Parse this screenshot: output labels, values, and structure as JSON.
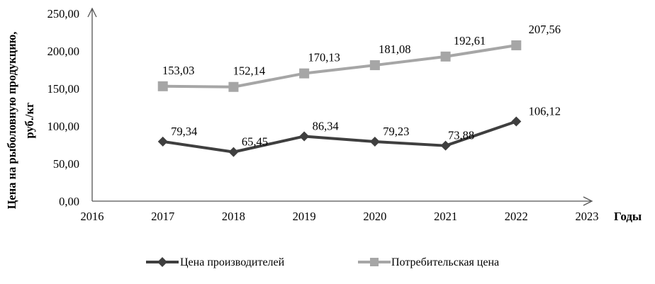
{
  "chart_data": {
    "type": "line",
    "xlabel": "Годы",
    "ylabel_line1": "Цена на рыболовную продукцию,",
    "ylabel_line2": "руб./кг",
    "xlim": [
      2016,
      2023
    ],
    "ylim": [
      0,
      250
    ],
    "x_ticks": [
      "2016",
      "2017",
      "2018",
      "2019",
      "2020",
      "2021",
      "2022",
      "2023"
    ],
    "y_ticks": [
      "0,00",
      "50,00",
      "100,00",
      "150,00",
      "200,00",
      "250,00"
    ],
    "y_tick_values": [
      0,
      50,
      100,
      150,
      200,
      250
    ],
    "x": [
      2017,
      2018,
      2019,
      2020,
      2021,
      2022
    ],
    "series": [
      {
        "name": "Цена производителей",
        "values": [
          79.34,
          65.45,
          86.34,
          79.23,
          73.88,
          106.12
        ],
        "labels": [
          "79,34",
          "65,45",
          "86,34",
          "79,23",
          "73,88",
          "106,12"
        ],
        "color": "#3f3f3f",
        "marker": "diamond"
      },
      {
        "name": "Потребительская цена",
        "values": [
          153.03,
          152.14,
          170.13,
          181.08,
          192.61,
          207.56
        ],
        "labels": [
          "153,03",
          "152,14",
          "170,13",
          "181,08",
          "192,61",
          "207,56"
        ],
        "color": "#a6a6a6",
        "marker": "square"
      }
    ],
    "grid": false,
    "legend_position": "bottom"
  }
}
